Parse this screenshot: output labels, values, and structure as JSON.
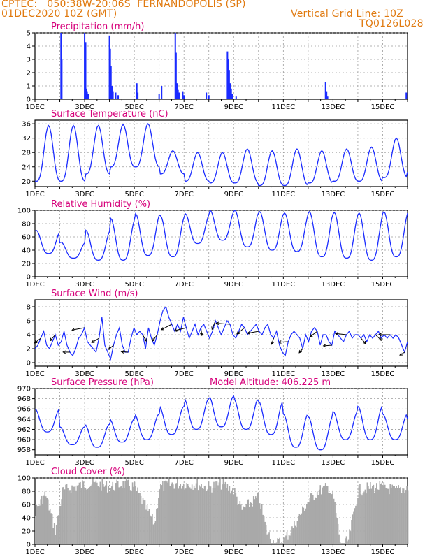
{
  "header": {
    "line1": "CPTEC:   050:38W-20:06S  FERNANDOPOLIS (SP)",
    "line2_left": "01DEC2020 10Z (GMT)",
    "line2_right": "Vertical Grid Line: 10Z",
    "line3_right": "TQ0126L028"
  },
  "colors": {
    "header": "#e07a10",
    "title": "#d6007a",
    "series": "#1a2bff",
    "cloud": "#a9a9a9",
    "grid": "#9a9a9a"
  },
  "x_axis": {
    "labels": [
      "1DEC",
      "3DEC",
      "5DEC",
      "7DEC",
      "9DEC",
      "11DEC",
      "13DEC",
      "15DEC"
    ],
    "start_day": 1,
    "end_day": 16
  },
  "chart_data": [
    {
      "id": "precip",
      "type": "bar",
      "title": "Precipitation (mm/h)",
      "ylim": [
        0,
        5
      ],
      "yticks": [
        0,
        1,
        2,
        3,
        4,
        5
      ],
      "events": [
        {
          "day": 2.05,
          "value": 5.0
        },
        {
          "day": 2.08,
          "value": 3.0
        },
        {
          "day": 3.0,
          "value": 5.0
        },
        {
          "day": 3.04,
          "value": 4.3
        },
        {
          "day": 3.07,
          "value": 0.8
        },
        {
          "day": 3.1,
          "value": 0.6
        },
        {
          "day": 3.14,
          "value": 0.4
        },
        {
          "day": 4.0,
          "value": 4.8
        },
        {
          "day": 4.03,
          "value": 3.8
        },
        {
          "day": 4.06,
          "value": 2.5
        },
        {
          "day": 4.1,
          "value": 1.0
        },
        {
          "day": 4.14,
          "value": 0.6
        },
        {
          "day": 4.25,
          "value": 0.5
        },
        {
          "day": 4.35,
          "value": 0.3
        },
        {
          "day": 5.1,
          "value": 1.2
        },
        {
          "day": 5.14,
          "value": 0.5
        },
        {
          "day": 6.0,
          "value": 0.4
        },
        {
          "day": 6.1,
          "value": 1.0
        },
        {
          "day": 6.65,
          "value": 5.0
        },
        {
          "day": 6.68,
          "value": 3.5
        },
        {
          "day": 6.72,
          "value": 1.2
        },
        {
          "day": 6.76,
          "value": 0.7
        },
        {
          "day": 6.8,
          "value": 0.5
        },
        {
          "day": 6.95,
          "value": 0.6
        },
        {
          "day": 7.0,
          "value": 0.3
        },
        {
          "day": 7.9,
          "value": 0.5
        },
        {
          "day": 8.0,
          "value": 0.3
        },
        {
          "day": 8.75,
          "value": 3.6
        },
        {
          "day": 8.78,
          "value": 3.0
        },
        {
          "day": 8.82,
          "value": 2.2
        },
        {
          "day": 8.86,
          "value": 1.2
        },
        {
          "day": 8.9,
          "value": 0.8
        },
        {
          "day": 8.95,
          "value": 0.4
        },
        {
          "day": 9.1,
          "value": 0.2
        },
        {
          "day": 12.7,
          "value": 1.3
        },
        {
          "day": 12.74,
          "value": 0.6
        },
        {
          "day": 12.78,
          "value": 0.2
        },
        {
          "day": 15.95,
          "value": 0.5
        }
      ]
    },
    {
      "id": "temp",
      "type": "line",
      "title": "Surface Temperature (nC)",
      "ylim": [
        18.5,
        37
      ],
      "yticks": [
        20,
        24,
        28,
        32,
        36
      ],
      "daily_minmax": [
        [
          20,
          35.5
        ],
        [
          20,
          35.5
        ],
        [
          22,
          35.5
        ],
        [
          24,
          35.8
        ],
        [
          24,
          36
        ],
        [
          22,
          28.5
        ],
        [
          20,
          28
        ],
        [
          19.5,
          28
        ],
        [
          19.5,
          29
        ],
        [
          18.8,
          28.5
        ],
        [
          18.8,
          29
        ],
        [
          19.5,
          28.5
        ],
        [
          20,
          29
        ],
        [
          20,
          29.5
        ],
        [
          21,
          32
        ],
        [
          22.5,
          33
        ]
      ]
    },
    {
      "id": "rh",
      "type": "line",
      "title": "Relative Humidity (%)",
      "ylim": [
        0,
        100
      ],
      "yticks": [
        0,
        20,
        40,
        60,
        80,
        100
      ],
      "daily_minmax": [
        [
          35,
          70
        ],
        [
          28,
          52
        ],
        [
          25,
          70
        ],
        [
          25,
          88
        ],
        [
          32,
          95
        ],
        [
          30,
          92
        ],
        [
          50,
          95
        ],
        [
          55,
          100
        ],
        [
          45,
          100
        ],
        [
          40,
          98
        ],
        [
          38,
          96
        ],
        [
          30,
          98
        ],
        [
          28,
          97
        ],
        [
          25,
          96
        ],
        [
          30,
          98
        ],
        [
          40,
          98
        ]
      ]
    },
    {
      "id": "wind",
      "type": "line",
      "title": "Surface Wind (m/s)",
      "ylim": [
        -0.5,
        9
      ],
      "yticks": [
        0,
        2,
        4,
        6,
        8
      ],
      "speed": [
        2.0,
        2.5,
        3.5,
        4.5,
        2.5,
        2.0,
        3.0,
        4.0,
        2.5,
        3.0,
        4.5,
        2.5,
        1.5,
        1.0,
        2.0,
        3.5,
        4.0,
        5.0,
        3.0,
        2.5,
        2.0,
        1.5,
        3.5,
        6.5,
        2.5,
        1.5,
        0.5,
        2.5,
        4.0,
        5.0,
        2.5,
        1.5,
        1.5,
        3.5,
        5.0,
        4.0,
        4.5,
        4.0,
        2.0,
        5.0,
        3.5,
        2.5,
        4.0,
        6.0,
        7.5,
        8.0,
        6.5,
        5.5,
        4.5,
        5.5,
        4.5,
        6.5,
        5.0,
        3.5,
        4.5,
        5.5,
        4.0,
        5.0,
        5.5,
        4.5,
        3.5,
        4.5,
        6.0,
        5.0,
        4.0,
        5.0,
        6.0,
        5.5,
        4.0,
        3.5,
        4.5,
        5.5,
        5.0,
        4.0,
        4.5,
        5.0,
        5.5,
        4.5,
        4.0,
        5.0,
        5.5,
        4.0,
        3.5,
        4.5,
        2.5,
        1.5,
        1.0,
        3.0,
        4.0,
        4.5,
        4.0,
        3.5,
        2.0,
        4.0,
        3.0,
        4.5,
        5.0,
        4.5,
        2.5,
        4.0,
        4.0,
        3.0,
        2.5,
        4.5,
        4.0,
        3.5,
        3.0,
        4.0,
        4.5,
        3.5,
        4.0,
        4.0,
        3.5,
        4.0,
        3.0,
        4.0,
        3.5,
        4.0,
        4.5,
        3.5,
        4.0,
        3.5,
        4.0,
        3.5,
        4.0,
        3.5,
        2.5,
        1.5,
        3.0
      ]
    },
    {
      "id": "press",
      "type": "line",
      "title": "Surface Pressure (hPa)",
      "annotation": "Model Altitude: 406.225 m",
      "ylim": [
        957,
        970
      ],
      "yticks": [
        958,
        960,
        962,
        964,
        966,
        968,
        970
      ],
      "daily_minmax": [
        [
          961.5,
          966
        ],
        [
          959,
          962.5
        ],
        [
          958.5,
          963
        ],
        [
          959.5,
          964
        ],
        [
          960,
          965
        ],
        [
          961,
          966.5
        ],
        [
          962,
          968
        ],
        [
          962.5,
          968.5
        ],
        [
          962,
          968
        ],
        [
          961,
          967.5
        ],
        [
          958.5,
          965
        ],
        [
          958,
          964.5
        ],
        [
          960,
          965.5
        ],
        [
          960,
          966.5
        ],
        [
          960,
          965
        ],
        [
          960,
          964
        ]
      ]
    },
    {
      "id": "cloud",
      "type": "area",
      "title": "Cloud Cover (%)",
      "ylim": [
        0,
        100
      ],
      "yticks": [
        0,
        20,
        40,
        60,
        80,
        100
      ],
      "profile": [
        [
          1.0,
          60
        ],
        [
          1.4,
          85
        ],
        [
          1.8,
          30
        ],
        [
          2.1,
          90
        ],
        [
          2.5,
          95
        ],
        [
          3.0,
          100
        ],
        [
          3.5,
          100
        ],
        [
          4.0,
          95
        ],
        [
          4.5,
          100
        ],
        [
          5.0,
          95
        ],
        [
          5.5,
          60
        ],
        [
          5.8,
          40
        ],
        [
          6.0,
          95
        ],
        [
          6.5,
          100
        ],
        [
          7.0,
          100
        ],
        [
          7.5,
          100
        ],
        [
          8.0,
          95
        ],
        [
          8.5,
          100
        ],
        [
          9.0,
          90
        ],
        [
          9.3,
          60
        ],
        [
          9.6,
          70
        ],
        [
          10.0,
          80
        ],
        [
          10.3,
          30
        ],
        [
          10.5,
          15
        ],
        [
          10.7,
          10
        ],
        [
          11.0,
          15
        ],
        [
          11.3,
          30
        ],
        [
          11.6,
          50
        ],
        [
          12.0,
          75
        ],
        [
          12.4,
          90
        ],
        [
          12.8,
          95
        ],
        [
          13.0,
          80
        ],
        [
          13.3,
          5
        ],
        [
          13.6,
          15
        ],
        [
          14.0,
          90
        ],
        [
          14.5,
          95
        ],
        [
          15.0,
          95
        ],
        [
          15.5,
          90
        ],
        [
          16.0,
          95
        ]
      ]
    }
  ]
}
